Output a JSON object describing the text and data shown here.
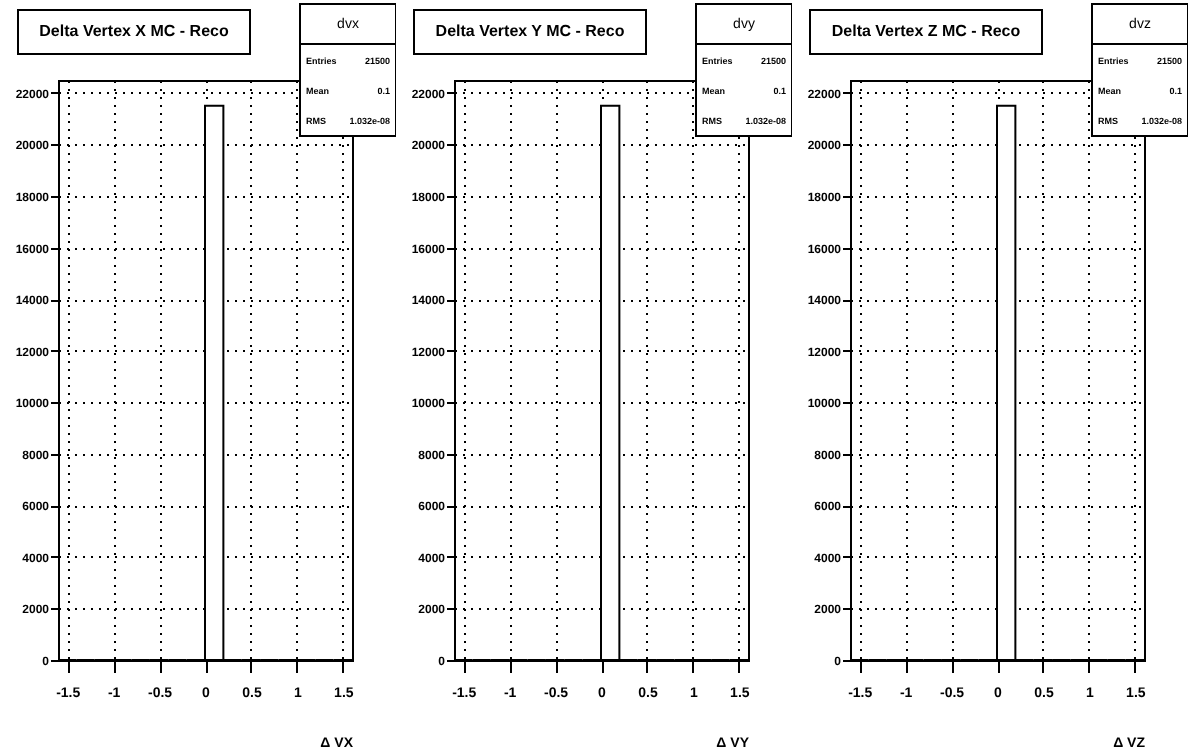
{
  "chart_data": [
    {
      "type": "histogram",
      "title": "Delta Vertex X MC -  Reco",
      "xlabel": "Δ VX",
      "bins": [
        -1.6,
        -1.4,
        -1.2,
        -1.0,
        -0.8,
        -0.6,
        -0.4,
        -0.2,
        0,
        0.2,
        0.4,
        0.6,
        0.8,
        1.0,
        1.2,
        1.4,
        1.6
      ],
      "values": [
        0,
        0,
        0,
        0,
        0,
        0,
        0,
        0,
        21500,
        0,
        0,
        0,
        0,
        0,
        0,
        0
      ],
      "xlim": [
        -1.6,
        1.6
      ],
      "ylim": [
        0,
        22500
      ],
      "xticks": [
        -1.5,
        -1,
        -0.5,
        0,
        0.5,
        1,
        1.5
      ],
      "yticks": [
        0,
        2000,
        4000,
        6000,
        8000,
        10000,
        12000,
        14000,
        16000,
        18000,
        20000,
        22000
      ],
      "grid": true,
      "annotations": [
        "dvx",
        "Entries",
        "21500",
        "Mean",
        "0.1",
        "RMS",
        "1.032e-08"
      ]
    },
    {
      "type": "histogram",
      "title": "Delta Vertex Y MC -  Reco",
      "xlabel": "Δ VY",
      "bins": [
        -1.6,
        -1.4,
        -1.2,
        -1.0,
        -0.8,
        -0.6,
        -0.4,
        -0.2,
        0,
        0.2,
        0.4,
        0.6,
        0.8,
        1.0,
        1.2,
        1.4,
        1.6
      ],
      "values": [
        0,
        0,
        0,
        0,
        0,
        0,
        0,
        0,
        21500,
        0,
        0,
        0,
        0,
        0,
        0,
        0
      ],
      "xlim": [
        -1.6,
        1.6
      ],
      "ylim": [
        0,
        22500
      ],
      "xticks": [
        -1.5,
        -1,
        -0.5,
        0,
        0.5,
        1,
        1.5
      ],
      "yticks": [
        0,
        2000,
        4000,
        6000,
        8000,
        10000,
        12000,
        14000,
        16000,
        18000,
        20000,
        22000
      ],
      "grid": true,
      "annotations": [
        "dvy",
        "Entries",
        "21500",
        "Mean",
        "0.1",
        "RMS",
        "1.032e-08"
      ]
    },
    {
      "type": "histogram",
      "title": "Delta Vertex Z MC -  Reco",
      "xlabel": "Δ VZ",
      "bins": [
        -1.6,
        -1.4,
        -1.2,
        -1.0,
        -0.8,
        -0.6,
        -0.4,
        -0.2,
        0,
        0.2,
        0.4,
        0.6,
        0.8,
        1.0,
        1.2,
        1.4,
        1.6
      ],
      "values": [
        0,
        0,
        0,
        0,
        0,
        0,
        0,
        0,
        21500,
        0,
        0,
        0,
        0,
        0,
        0,
        0
      ],
      "xlim": [
        -1.6,
        1.6
      ],
      "ylim": [
        0,
        22500
      ],
      "xticks": [
        -1.5,
        -1,
        -0.5,
        0,
        0.5,
        1,
        1.5
      ],
      "yticks": [
        0,
        2000,
        4000,
        6000,
        8000,
        10000,
        12000,
        14000,
        16000,
        18000,
        20000,
        22000
      ],
      "grid": true,
      "annotations": [
        "dvz",
        "Entries",
        "21500",
        "Mean",
        "0.1",
        "RMS",
        "1.032e-08"
      ]
    }
  ]
}
